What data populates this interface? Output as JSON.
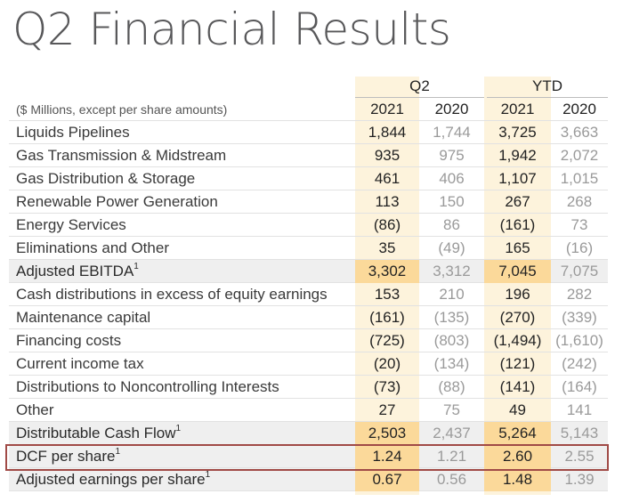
{
  "title": "Q2 Financial Results",
  "header": {
    "group_q2": "Q2",
    "group_ytd": "YTD",
    "units_label": "($ Millions, except per share amounts)",
    "years": [
      "2021",
      "2020",
      "2021",
      "2020"
    ]
  },
  "rows": [
    {
      "label": "Liquids Pipelines",
      "sup": "",
      "values": [
        "1,844",
        "1,744",
        "3,725",
        "3,663"
      ]
    },
    {
      "label": "Gas Transmission & Midstream",
      "sup": "",
      "values": [
        "935",
        "975",
        "1,942",
        "2,072"
      ]
    },
    {
      "label": "Gas Distribution & Storage",
      "sup": "",
      "values": [
        "461",
        "406",
        "1,107",
        "1,015"
      ]
    },
    {
      "label": "Renewable Power Generation",
      "sup": "",
      "values": [
        "113",
        "150",
        "267",
        "268"
      ]
    },
    {
      "label": "Energy Services",
      "sup": "",
      "values": [
        "(86)",
        "86",
        "(161)",
        "73"
      ]
    },
    {
      "label": "Eliminations and Other",
      "sup": "",
      "values": [
        "35",
        "(49)",
        "165",
        "(16)"
      ]
    },
    {
      "label": "Adjusted EBITDA",
      "sup": "1",
      "values": [
        "3,302",
        "3,312",
        "7,045",
        "7,075"
      ]
    },
    {
      "label": "Cash distributions in excess of equity earnings",
      "sup": "",
      "values": [
        "153",
        "210",
        "196",
        "282"
      ]
    },
    {
      "label": "Maintenance capital",
      "sup": "",
      "values": [
        "(161)",
        "(135)",
        "(270)",
        "(339)"
      ]
    },
    {
      "label": "Financing costs",
      "sup": "",
      "values": [
        "(725)",
        "(803)",
        "(1,494)",
        "(1,610)"
      ]
    },
    {
      "label": "Current income tax",
      "sup": "",
      "values": [
        "(20)",
        "(134)",
        "(121)",
        "(242)"
      ]
    },
    {
      "label": "Distributions to Noncontrolling Interests",
      "sup": "",
      "values": [
        "(73)",
        "(88)",
        "(141)",
        "(164)"
      ]
    },
    {
      "label": "Other",
      "sup": "",
      "values": [
        "27",
        "75",
        "49",
        "141"
      ]
    },
    {
      "label": "Distributable Cash Flow",
      "sup": "1",
      "values": [
        "2,503",
        "2,437",
        "5,264",
        "5,143"
      ]
    },
    {
      "label": "DCF per share",
      "sup": "1",
      "values": [
        "1.24",
        "1.21",
        "2.60",
        "2.55"
      ]
    },
    {
      "label": "Adjusted earnings per share",
      "sup": "1",
      "values": [
        "0.67",
        "0.56",
        "1.48",
        "1.39"
      ]
    }
  ],
  "colors": {
    "highlight_column": "#fdf3dc",
    "total_highlight": "#fbd99a",
    "total_row_bg": "#efefef",
    "box_outline": "#a04a46"
  }
}
